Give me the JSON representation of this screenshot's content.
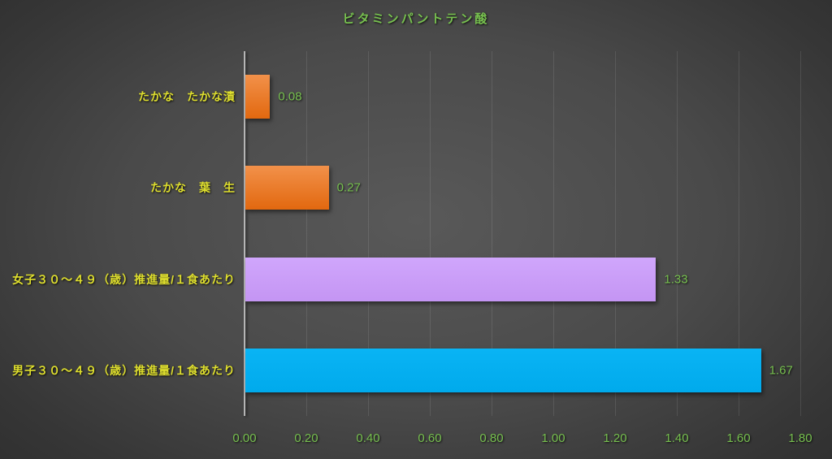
{
  "chart_data": {
    "type": "bar",
    "orientation": "horizontal",
    "title": "ビタミンパントテン酸",
    "categories": [
      "たかな　たかな漬",
      "たかな　葉　生",
      "女子３０～４９（歳）推進量/１食あたり",
      "男子３０～４９（歳）推進量/１食あたり"
    ],
    "values": [
      0.08,
      0.27,
      1.33,
      1.67
    ],
    "xlabel": "",
    "ylabel": "",
    "xlim": [
      0,
      1.8
    ],
    "xticks": [
      "0.00",
      "0.20",
      "0.40",
      "0.60",
      "0.80",
      "1.00",
      "1.20",
      "1.40",
      "1.60",
      "1.80"
    ],
    "grid": true,
    "legend": "none",
    "bars": [
      {
        "category": "たかな　たかな漬",
        "value": 0.08,
        "label": "0.08",
        "fill_top": "#F2914A",
        "fill_bottom": "#E2680F"
      },
      {
        "category": "たかな　葉　生",
        "value": 0.27,
        "label": "0.27",
        "fill_top": "#F2914A",
        "fill_bottom": "#E2680F"
      },
      {
        "category": "女子３０～４９（歳）推進量/１食あたり",
        "value": 1.33,
        "label": "1.33",
        "fill_top": "#D0A6FC",
        "fill_bottom": "#C495F3"
      },
      {
        "category": "男子３０～４９（歳）推進量/１食あたり",
        "value": 1.67,
        "label": "1.67",
        "fill_top": "#0AB4F4",
        "fill_bottom": "#00AAEC"
      }
    ],
    "colors": {
      "title_text": "#77C04F",
      "tick_text": "#77C04F",
      "value_text": "#77C04F",
      "category_text": "#DFDF2E",
      "axis_line": "#B5B5B5"
    }
  }
}
